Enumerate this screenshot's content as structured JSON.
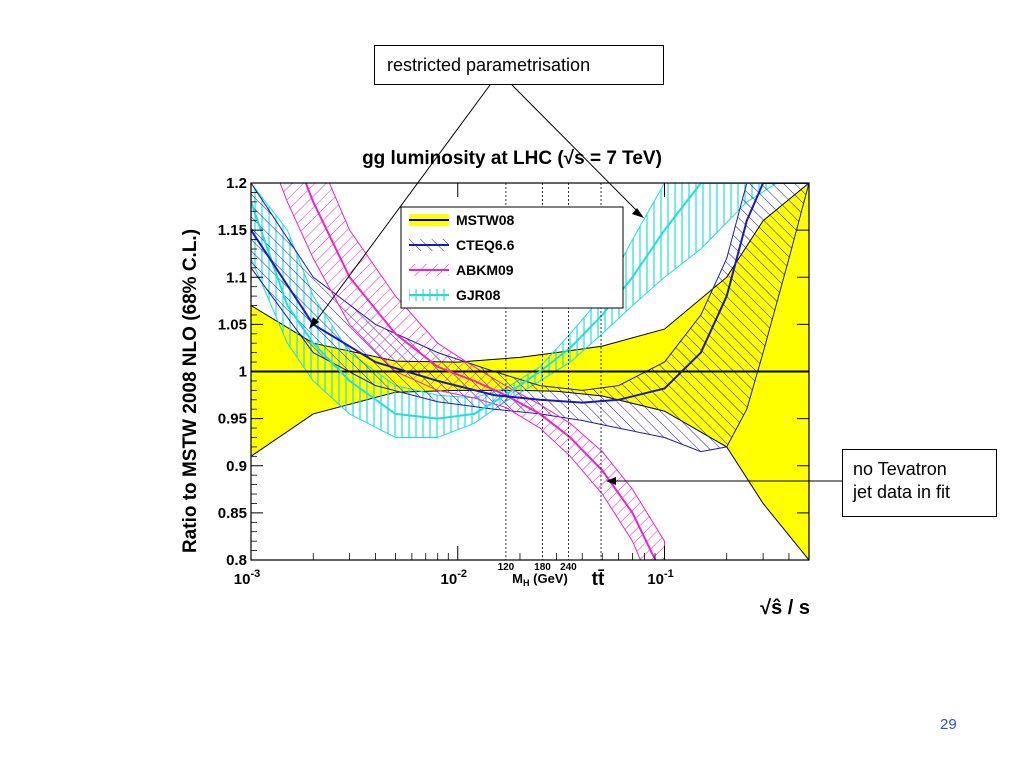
{
  "callouts": {
    "top": "restricted parametrisation",
    "right_line1": "no Tevatron",
    "right_line2": "jet data in fit"
  },
  "slide_number": "29",
  "colors": {
    "mstw_band": "#ffff00",
    "mstw_line": "#000000",
    "cteq": "#1a1ab8",
    "abkm": "#ee22cc",
    "gjr": "#22dddd"
  },
  "chart_data": {
    "type": "line",
    "title": "gg luminosity at LHC (√s = 7 TeV)",
    "ylabel": "Ratio to MSTW 2008 NLO (68% C.L.)",
    "xlabel": "√ŝ / s",
    "x_scale": "log",
    "xlim": [
      0.001,
      0.5
    ],
    "ylim": [
      0.8,
      1.2
    ],
    "y_ticks": [
      "0.8",
      "0.85",
      "0.9",
      "0.95",
      "1",
      "1.05",
      "1.1",
      "1.15",
      "1.2"
    ],
    "x_ticks": [
      {
        "value": 0.001,
        "base": "10",
        "exp": "-3"
      },
      {
        "value": 0.01,
        "base": "10",
        "exp": "-2"
      },
      {
        "value": 0.1,
        "base": "10",
        "exp": "-1"
      }
    ],
    "grid": false,
    "legend_position": "top-center",
    "vertical_markers": [
      {
        "x": 0.0171,
        "label": "120"
      },
      {
        "x": 0.0257,
        "label": "180"
      },
      {
        "x": 0.0343,
        "label": "240"
      },
      {
        "x": 0.0493,
        "label": "tt̄"
      }
    ],
    "marker_axis_label": "M",
    "marker_axis_sub": "H",
    "marker_axis_unit": "(GeV)",
    "series": [
      {
        "name": "MSTW08",
        "x": [
          0.001,
          0.002,
          0.005,
          0.01,
          0.02,
          0.03,
          0.05,
          0.1,
          0.2,
          0.3,
          0.5
        ],
        "central": [
          1,
          1,
          1,
          1,
          1,
          1,
          1,
          1,
          1,
          1,
          1
        ],
        "upper": [
          1.07,
          1.03,
          1.011,
          1.01,
          1.015,
          1.02,
          1.027,
          1.045,
          1.1,
          1.16,
          1.2
        ],
        "lower": [
          0.91,
          0.955,
          0.978,
          0.98,
          0.98,
          0.979,
          0.974,
          0.958,
          0.92,
          0.86,
          0.8
        ]
      },
      {
        "name": "CTEQ6.6",
        "x": [
          0.001,
          0.002,
          0.004,
          0.008,
          0.015,
          0.025,
          0.04,
          0.06,
          0.1,
          0.15,
          0.2,
          0.25,
          0.3,
          0.4,
          0.5
        ],
        "central": [
          1.15,
          1.05,
          1.01,
          0.99,
          0.975,
          0.97,
          0.967,
          0.97,
          0.982,
          1.02,
          1.08,
          1.16,
          1.2,
          1.2,
          1.2
        ],
        "upper": [
          1.2,
          1.1,
          1.05,
          1.02,
          1.0,
          0.985,
          0.98,
          0.985,
          1.01,
          1.06,
          1.12,
          1.2,
          1.2,
          1.2,
          1.2
        ],
        "lower": [
          1.11,
          1.02,
          0.985,
          0.968,
          0.96,
          0.955,
          0.948,
          0.94,
          0.93,
          0.915,
          0.92,
          0.96,
          1.02,
          1.12,
          1.2
        ]
      },
      {
        "name": "ABKM09",
        "x": [
          0.001,
          0.0015,
          0.002,
          0.003,
          0.005,
          0.008,
          0.012,
          0.017,
          0.025,
          0.035,
          0.05,
          0.07,
          0.1
        ],
        "central": [
          1.35,
          1.25,
          1.18,
          1.1,
          1.04,
          1.005,
          0.99,
          0.975,
          0.955,
          0.93,
          0.895,
          0.85,
          0.78
        ],
        "upper": [
          1.42,
          1.32,
          1.24,
          1.15,
          1.08,
          1.03,
          1.005,
          0.985,
          0.965,
          0.945,
          0.915,
          0.875,
          0.82
        ],
        "lower": [
          1.28,
          1.18,
          1.12,
          1.05,
          1.0,
          0.98,
          0.972,
          0.962,
          0.94,
          0.91,
          0.87,
          0.82,
          0.74
        ]
      },
      {
        "name": "GJR08",
        "x": [
          0.001,
          0.0015,
          0.002,
          0.003,
          0.005,
          0.008,
          0.012,
          0.017,
          0.025,
          0.035,
          0.05,
          0.07,
          0.1,
          0.15,
          0.25,
          0.35,
          0.5
        ],
        "central": [
          1.18,
          1.07,
          1.03,
          0.99,
          0.955,
          0.95,
          0.955,
          0.975,
          1.0,
          1.025,
          1.06,
          1.1,
          1.15,
          1.2,
          1.2,
          1.2,
          1.2
        ],
        "upper": [
          1.2,
          1.15,
          1.08,
          1.02,
          0.985,
          0.975,
          0.972,
          0.982,
          1.005,
          1.04,
          1.08,
          1.14,
          1.2,
          1.2,
          1.2,
          1.2,
          1.2
        ],
        "lower": [
          1.12,
          1.03,
          0.99,
          0.955,
          0.93,
          0.93,
          0.945,
          0.968,
          0.99,
          1.01,
          1.04,
          1.07,
          1.1,
          1.13,
          1.18,
          1.2,
          1.2
        ]
      }
    ]
  }
}
